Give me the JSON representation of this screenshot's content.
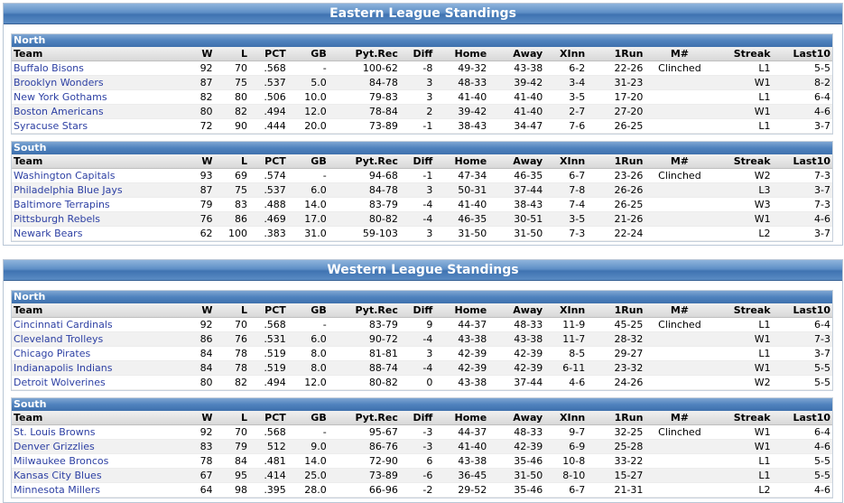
{
  "columns": [
    "Team",
    "W",
    "L",
    "PCT",
    "GB",
    "Pyt.Rec",
    "Diff",
    "Home",
    "Away",
    "XInn",
    "1Run",
    "M#",
    "Streak",
    "Last10"
  ],
  "leagues": [
    {
      "title": "Eastern League Standings",
      "divisions": [
        {
          "name": "North",
          "rows": [
            [
              "Buffalo Bisons",
              "92",
              "70",
              ".568",
              "-",
              "100-62",
              "-8",
              "49-32",
              "43-38",
              "6-2",
              "22-26",
              "Clinched",
              "L1",
              "5-5"
            ],
            [
              "Brooklyn Wonders",
              "87",
              "75",
              ".537",
              "5.0",
              "84-78",
              "3",
              "48-33",
              "39-42",
              "3-4",
              "31-23",
              "",
              "W1",
              "8-2"
            ],
            [
              "New York Gothams",
              "82",
              "80",
              ".506",
              "10.0",
              "79-83",
              "3",
              "41-40",
              "41-40",
              "3-5",
              "17-20",
              "",
              "L1",
              "6-4"
            ],
            [
              "Boston Americans",
              "80",
              "82",
              ".494",
              "12.0",
              "78-84",
              "2",
              "39-42",
              "41-40",
              "2-7",
              "27-20",
              "",
              "W1",
              "4-6"
            ],
            [
              "Syracuse Stars",
              "72",
              "90",
              ".444",
              "20.0",
              "73-89",
              "-1",
              "38-43",
              "34-47",
              "7-6",
              "26-25",
              "",
              "L1",
              "3-7"
            ]
          ]
        },
        {
          "name": "South",
          "rows": [
            [
              "Washington Capitals",
              "93",
              "69",
              ".574",
              "-",
              "94-68",
              "-1",
              "47-34",
              "46-35",
              "6-7",
              "23-26",
              "Clinched",
              "W2",
              "7-3"
            ],
            [
              "Philadelphia Blue Jays",
              "87",
              "75",
              ".537",
              "6.0",
              "84-78",
              "3",
              "50-31",
              "37-44",
              "7-8",
              "26-26",
              "",
              "L3",
              "3-7"
            ],
            [
              "Baltimore Terrapins",
              "79",
              "83",
              ".488",
              "14.0",
              "83-79",
              "-4",
              "41-40",
              "38-43",
              "7-4",
              "26-25",
              "",
              "W3",
              "7-3"
            ],
            [
              "Pittsburgh Rebels",
              "76",
              "86",
              ".469",
              "17.0",
              "80-82",
              "-4",
              "46-35",
              "30-51",
              "3-5",
              "21-26",
              "",
              "W1",
              "4-6"
            ],
            [
              "Newark Bears",
              "62",
              "100",
              ".383",
              "31.0",
              "59-103",
              "3",
              "31-50",
              "31-50",
              "7-3",
              "22-24",
              "",
              "L2",
              "3-7"
            ]
          ]
        }
      ]
    },
    {
      "title": "Western League Standings",
      "divisions": [
        {
          "name": "North",
          "rows": [
            [
              "Cincinnati Cardinals",
              "92",
              "70",
              ".568",
              "-",
              "83-79",
              "9",
              "44-37",
              "48-33",
              "11-9",
              "45-25",
              "Clinched",
              "L1",
              "6-4"
            ],
            [
              "Cleveland Trolleys",
              "86",
              "76",
              ".531",
              "6.0",
              "90-72",
              "-4",
              "43-38",
              "43-38",
              "11-7",
              "28-32",
              "",
              "W1",
              "7-3"
            ],
            [
              "Chicago Pirates",
              "84",
              "78",
              ".519",
              "8.0",
              "81-81",
              "3",
              "42-39",
              "42-39",
              "8-5",
              "29-27",
              "",
              "L1",
              "3-7"
            ],
            [
              "Indianapolis Indians",
              "84",
              "78",
              ".519",
              "8.0",
              "88-74",
              "-4",
              "42-39",
              "42-39",
              "6-11",
              "23-32",
              "",
              "W1",
              "5-5"
            ],
            [
              "Detroit Wolverines",
              "80",
              "82",
              ".494",
              "12.0",
              "80-82",
              "0",
              "43-38",
              "37-44",
              "4-6",
              "24-26",
              "",
              "W2",
              "5-5"
            ]
          ]
        },
        {
          "name": "South",
          "rows": [
            [
              "St. Louis Browns",
              "92",
              "70",
              ".568",
              "-",
              "95-67",
              "-3",
              "44-37",
              "48-33",
              "9-7",
              "32-25",
              "Clinched",
              "W1",
              "6-4"
            ],
            [
              "Denver Grizzlies",
              "83",
              "79",
              "512",
              "9.0",
              "86-76",
              "-3",
              "41-40",
              "42-39",
              "6-9",
              "25-28",
              "",
              "W1",
              "4-6"
            ],
            [
              "Milwaukee Broncos",
              "78",
              "84",
              ".481",
              "14.0",
              "72-90",
              "6",
              "43-38",
              "35-46",
              "10-8",
              "33-22",
              "",
              "L1",
              "5-5"
            ],
            [
              "Kansas City Blues",
              "67",
              "95",
              ".414",
              "25.0",
              "73-89",
              "-6",
              "36-45",
              "31-50",
              "8-10",
              "15-27",
              "",
              "L1",
              "5-5"
            ],
            [
              "Minnesota Millers",
              "64",
              "98",
              ".395",
              "28.0",
              "66-96",
              "-2",
              "29-52",
              "35-46",
              "6-7",
              "21-31",
              "",
              "L2",
              "4-6"
            ]
          ]
        }
      ]
    }
  ]
}
